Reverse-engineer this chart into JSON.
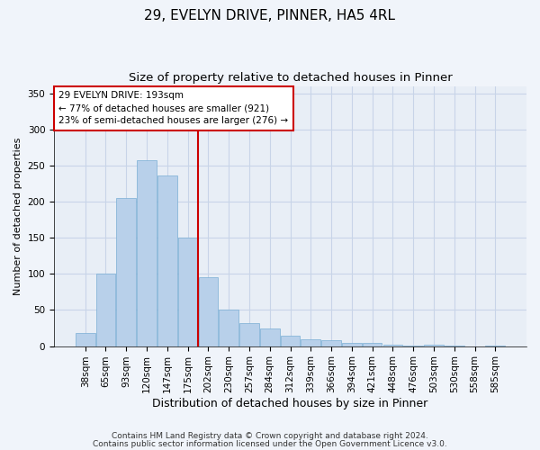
{
  "title1": "29, EVELYN DRIVE, PINNER, HA5 4RL",
  "title2": "Size of property relative to detached houses in Pinner",
  "xlabel": "Distribution of detached houses by size in Pinner",
  "ylabel": "Number of detached properties",
  "categories": [
    "38sqm",
    "65sqm",
    "93sqm",
    "120sqm",
    "147sqm",
    "175sqm",
    "202sqm",
    "230sqm",
    "257sqm",
    "284sqm",
    "312sqm",
    "339sqm",
    "366sqm",
    "394sqm",
    "421sqm",
    "448sqm",
    "476sqm",
    "503sqm",
    "530sqm",
    "558sqm",
    "585sqm"
  ],
  "values": [
    18,
    100,
    205,
    257,
    236,
    150,
    95,
    51,
    32,
    24,
    15,
    10,
    8,
    4,
    5,
    2,
    1,
    2,
    1,
    0,
    1
  ],
  "bar_color": "#b8d0ea",
  "bar_edge_color": "#7aaed4",
  "grid_color": "#c8d4e8",
  "background_color": "#e8eef6",
  "fig_background_color": "#f0f4fa",
  "vline_x": 5.5,
  "vline_color": "#cc0000",
  "annotation_text": "29 EVELYN DRIVE: 193sqm\n← 77% of detached houses are smaller (921)\n23% of semi-detached houses are larger (276) →",
  "annotation_box_color": "#ffffff",
  "annotation_box_edge": "#cc0000",
  "ylim": [
    0,
    360
  ],
  "yticks": [
    0,
    50,
    100,
    150,
    200,
    250,
    300,
    350
  ],
  "footnote1": "Contains HM Land Registry data © Crown copyright and database right 2024.",
  "footnote2": "Contains public sector information licensed under the Open Government Licence v3.0.",
  "title1_fontsize": 11,
  "title2_fontsize": 9.5,
  "xlabel_fontsize": 9,
  "ylabel_fontsize": 8,
  "tick_fontsize": 7.5,
  "annotation_fontsize": 7.5,
  "footnote_fontsize": 6.5
}
